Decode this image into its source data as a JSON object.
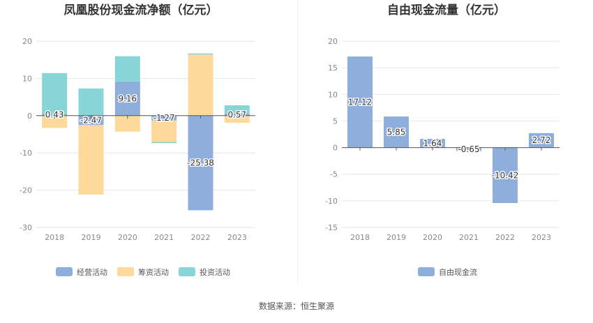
{
  "source_label": "数据来源：恒生聚源",
  "chart_data": [
    {
      "type": "bar",
      "stacked": true,
      "title": "凤凰股份现金流净额（亿元）",
      "categories": [
        "2018",
        "2019",
        "2020",
        "2021",
        "2022",
        "2023"
      ],
      "ylim": [
        -30,
        20
      ],
      "yticks": [
        20,
        10,
        0,
        -10,
        -20,
        -30
      ],
      "grid": true,
      "legend_position": "bottom",
      "series": [
        {
          "name": "经营活动",
          "color": "#8eaedc",
          "values": [
            0.43,
            -2.47,
            9.16,
            -1.27,
            -25.38,
            0.57
          ]
        },
        {
          "name": "筹资活动",
          "color": "#fdd99b",
          "values": [
            -3.3,
            -18.7,
            -4.3,
            -5.8,
            16.4,
            -1.9
          ]
        },
        {
          "name": "投资活动",
          "color": "#88d5d8",
          "values": [
            11.0,
            7.3,
            6.8,
            -0.3,
            0.3,
            2.2
          ]
        }
      ],
      "data_labels": [
        "0.43",
        "-2.47",
        "9.16",
        "-1.27",
        "-25.38",
        "0.57"
      ]
    },
    {
      "type": "bar",
      "title": "自由现金流量（亿元）",
      "categories": [
        "2018",
        "2019",
        "2020",
        "2021",
        "2022",
        "2023"
      ],
      "ylim": [
        -15,
        20
      ],
      "yticks": [
        20,
        15,
        10,
        5,
        0,
        -5,
        -10,
        -15
      ],
      "grid": true,
      "legend_position": "bottom",
      "series": [
        {
          "name": "自由现金流",
          "color": "#8eaedc",
          "values": [
            17.12,
            5.85,
            1.64,
            -0.65,
            -10.42,
            2.72
          ]
        }
      ],
      "data_labels": [
        "17.12",
        "5.85",
        "1.64",
        "-0.65",
        "-10.42",
        "2.72"
      ]
    }
  ]
}
